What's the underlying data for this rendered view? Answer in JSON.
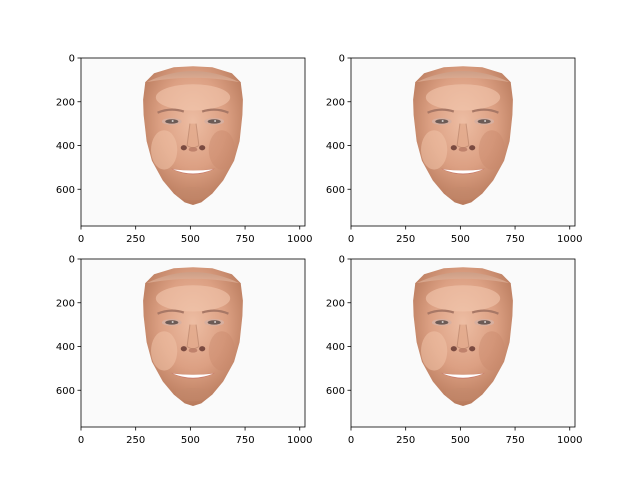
{
  "figure": {
    "panels": [
      {
        "name": "top-left",
        "xticks": [
          "0",
          "250",
          "500",
          "750",
          "1000"
        ],
        "yticks": [
          "0",
          "200",
          "400",
          "600"
        ]
      },
      {
        "name": "top-right",
        "xticks": [
          "0",
          "250",
          "500",
          "750",
          "1000"
        ],
        "yticks": [
          "0",
          "200",
          "400",
          "600"
        ]
      },
      {
        "name": "bottom-left",
        "xticks": [
          "0",
          "250",
          "500",
          "750",
          "1000"
        ],
        "yticks": [
          "0",
          "200",
          "400",
          "600"
        ]
      },
      {
        "name": "bottom-right",
        "xticks": [
          "0",
          "250",
          "500",
          "750",
          "1000"
        ],
        "yticks": [
          "0",
          "200",
          "400",
          "600"
        ]
      }
    ],
    "image_extent": {
      "x": [
        0,
        1024
      ],
      "y": [
        768,
        0
      ]
    },
    "colors": {
      "image_background": "#fafafa",
      "skin_light": "#e8b49a",
      "skin_mid": "#d49a7c",
      "skin_shadow": "#b87a5c",
      "hair_line": "#c9a58c",
      "lip": "#c97c6c",
      "teeth": "#ffffff",
      "eye": "#6b5a55",
      "axis": "#000000"
    }
  }
}
